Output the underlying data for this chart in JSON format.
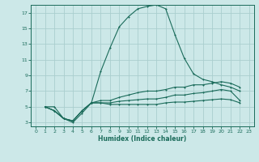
{
  "xlabel": "Humidex (Indice chaleur)",
  "bg_color": "#cce8e8",
  "line_color": "#1a6b5a",
  "grid_color": "#aacece",
  "xlim": [
    -0.5,
    23.5
  ],
  "ylim": [
    2.5,
    18
  ],
  "xticks": [
    0,
    1,
    2,
    3,
    4,
    5,
    6,
    7,
    8,
    9,
    10,
    11,
    12,
    13,
    14,
    15,
    16,
    17,
    18,
    19,
    20,
    21,
    22,
    23
  ],
  "yticks": [
    3,
    5,
    7,
    9,
    11,
    13,
    15,
    17
  ],
  "lines": [
    {
      "x": [
        1,
        2,
        3,
        4,
        5,
        6,
        7,
        8,
        9,
        10,
        11,
        12,
        13,
        14,
        15,
        16,
        17,
        18,
        19,
        20,
        21,
        22
      ],
      "y": [
        5,
        5,
        3.5,
        3,
        4.2,
        5.5,
        9.5,
        12.5,
        15.2,
        16.5,
        17.5,
        17.8,
        18,
        17.5,
        14.2,
        11.2,
        9.2,
        8.5,
        8.2,
        7.8,
        7.5,
        7.0
      ]
    },
    {
      "x": [
        1,
        2,
        3,
        4,
        5,
        6,
        7,
        8,
        9,
        10,
        11,
        12,
        13,
        14,
        15,
        16,
        17,
        18,
        19,
        20,
        21,
        22
      ],
      "y": [
        5.0,
        4.5,
        3.5,
        3.2,
        4.5,
        5.5,
        5.8,
        5.8,
        6.2,
        6.5,
        6.8,
        7.0,
        7.0,
        7.2,
        7.5,
        7.5,
        7.8,
        7.8,
        8.0,
        8.2,
        8.0,
        7.5
      ]
    },
    {
      "x": [
        1,
        2,
        3,
        4,
        5,
        6,
        7,
        8,
        9,
        10,
        11,
        12,
        13,
        14,
        15,
        16,
        17,
        18,
        19,
        20,
        21,
        22
      ],
      "y": [
        5.0,
        4.5,
        3.5,
        3.2,
        4.5,
        5.5,
        5.5,
        5.5,
        5.7,
        5.8,
        5.9,
        6.0,
        6.0,
        6.2,
        6.5,
        6.5,
        6.7,
        6.8,
        7.0,
        7.2,
        7.0,
        5.8
      ]
    },
    {
      "x": [
        1,
        2,
        3,
        4,
        5,
        6,
        7,
        8,
        9,
        10,
        11,
        12,
        13,
        14,
        15,
        16,
        17,
        18,
        19,
        20,
        21,
        22
      ],
      "y": [
        5.0,
        4.5,
        3.5,
        3.2,
        4.5,
        5.5,
        5.5,
        5.3,
        5.3,
        5.3,
        5.3,
        5.3,
        5.3,
        5.5,
        5.6,
        5.6,
        5.7,
        5.8,
        5.9,
        6.0,
        5.9,
        5.5
      ]
    }
  ],
  "markersize": 2.0
}
